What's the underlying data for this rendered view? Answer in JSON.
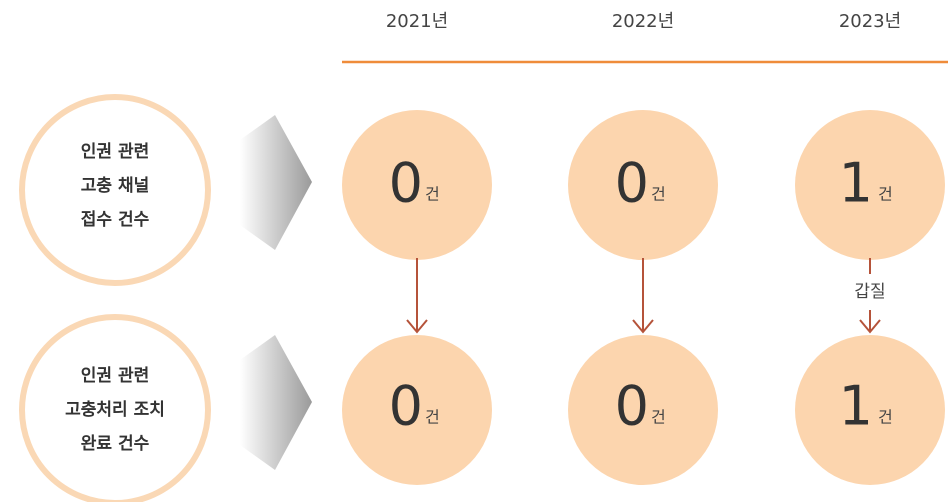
{
  "years": [
    "2021년",
    "2022년",
    "2023년"
  ],
  "unit": "건",
  "rows": [
    {
      "label": [
        "인권 관련",
        "고충 채널",
        "접수 건수"
      ],
      "values": [
        0,
        0,
        1
      ]
    },
    {
      "label": [
        "인권 관련",
        "고충처리 조치",
        "완료 건수"
      ],
      "values": [
        0,
        0,
        1
      ]
    }
  ],
  "annotation": "갑질"
}
